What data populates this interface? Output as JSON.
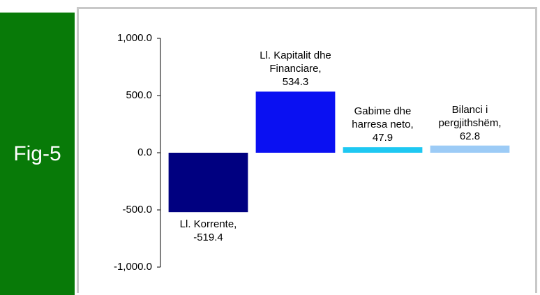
{
  "chart_data": {
    "type": "bar",
    "panel_label": "Fig-5",
    "categories": [
      "Ll. Korrente",
      "Ll. Kapitalit dhe Financiare",
      "Gabime dhe harresa neto",
      "Bilanci i pergjithshëm"
    ],
    "values": [
      -519.4,
      534.3,
      47.9,
      62.8
    ],
    "value_labels": [
      "Ll. Korrente, -519.4",
      "Ll. Kapitalit dhe Financiare, 534.3",
      "Gabime dhe harresa neto, 47.9",
      "Bilanci i pergjithshëm, 62.8"
    ],
    "colors": [
      "#000080",
      "#0a10f2",
      "#1ec8f2",
      "#9ccbf6"
    ],
    "ylim": [
      -1000,
      1000
    ],
    "yticks": [
      {
        "value": -1000,
        "label": "-1,000.0"
      },
      {
        "value": -500,
        "label": "-500.0"
      },
      {
        "value": 0,
        "label": "0.0"
      },
      {
        "value": 500,
        "label": "500.0"
      },
      {
        "value": 1000,
        "label": "1,000.0"
      }
    ],
    "grid": false
  }
}
